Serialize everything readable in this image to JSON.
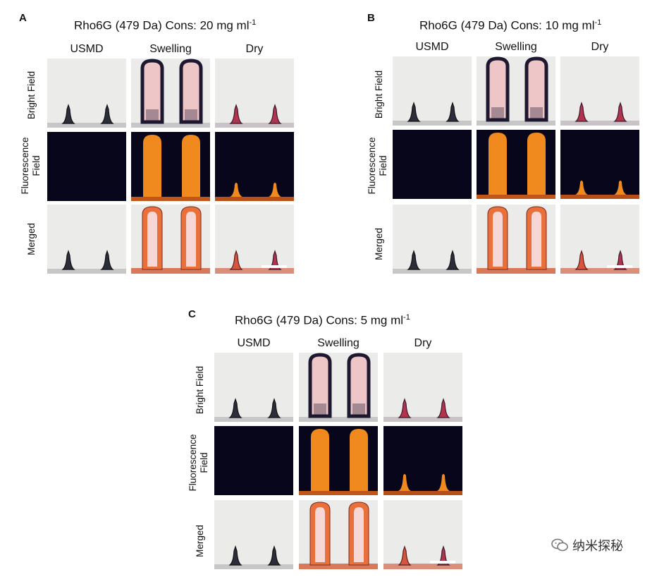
{
  "panels": [
    {
      "letter": "A",
      "title_main": "Rho6G (479 Da) Cons: 20 mg ml",
      "title_sup": "-1"
    },
    {
      "letter": "B",
      "title_main": "Rho6G (479 Da) Cons: 10 mg ml",
      "title_sup": "-1"
    },
    {
      "letter": "C",
      "title_main": "Rho6G (479 Da) Cons: 5 mg ml",
      "title_sup": "-1"
    }
  ],
  "columns": [
    "USMD",
    "Swelling",
    "Dry"
  ],
  "rows": {
    "bright": "Bright Field",
    "fluor_line1": "Fluorescence",
    "fluor_line2": "Field",
    "merged": "Merged"
  },
  "watermark": "纳米探秘",
  "colors": {
    "bright_bg": "#ebebe9",
    "fluor_bg": "#07061a",
    "needle_dark": "#2a2e3a",
    "swell_outline": "#1d1730",
    "swell_fill": "#eec6c7",
    "fluor_orange": "#f08a1e",
    "merged_orange": "#e9703a",
    "dry_tip": "#b2334e"
  }
}
